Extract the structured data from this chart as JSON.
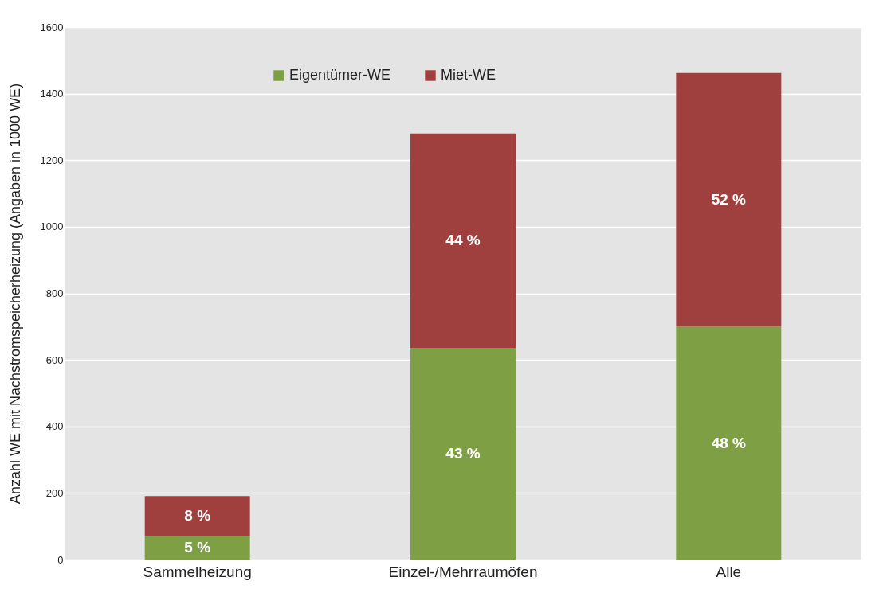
{
  "chart_data": {
    "type": "bar",
    "ylabel": "Anzahl WE mit Nachstromspeicherheizung (Angaben in 1000 WE)",
    "categories": [
      "Sammelheizung",
      "Einzel-/Mehrraumöfen",
      "Alle"
    ],
    "stacked": true,
    "series": [
      {
        "name": "Eigentümer-WE",
        "color": "#7f9f45",
        "values": [
          72,
          636,
          700
        ]
      },
      {
        "name": "Miet-WE",
        "color": "#a0403e",
        "values": [
          119,
          644,
          762
        ]
      }
    ],
    "annotations": [
      "5 %",
      "43 %",
      "48 %",
      "8 %",
      "44 %",
      "52 %"
    ],
    "ylim": [
      0,
      1600
    ],
    "yticks": [
      0,
      200,
      400,
      600,
      800,
      1000,
      1200,
      1400,
      1600
    ],
    "grid": "y",
    "legend": "top"
  }
}
